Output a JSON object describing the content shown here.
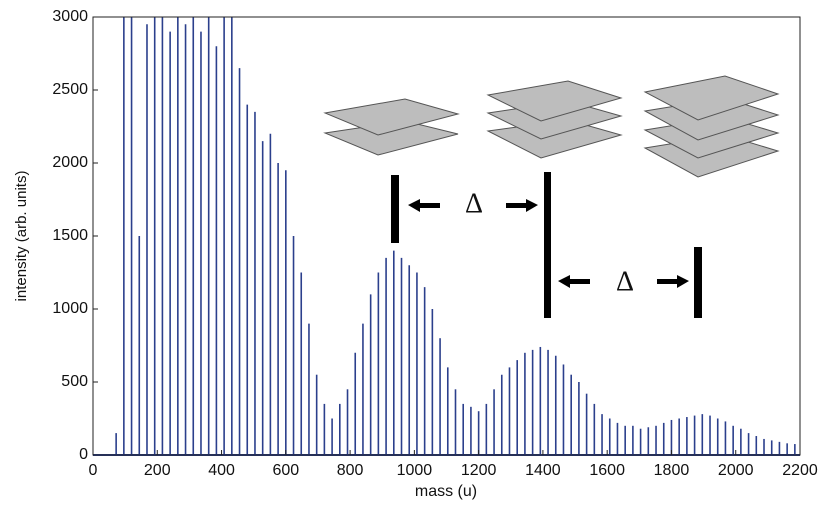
{
  "chart_data": {
    "type": "stick",
    "x_label": "mass (u)",
    "y_label": "intensity (arb. units)",
    "xlim": [
      0,
      2200
    ],
    "xticks": [
      0,
      200,
      400,
      600,
      800,
      1000,
      1200,
      1400,
      1600,
      1800,
      2000,
      2200
    ],
    "ylim": [
      0,
      3000
    ],
    "yticks": [
      0,
      500,
      1000,
      1500,
      2000,
      2500,
      3000
    ],
    "color": "#2b3f8c",
    "x": [
      72,
      96,
      120,
      144,
      168,
      192,
      216,
      240,
      264,
      288,
      312,
      336,
      360,
      384,
      408,
      432,
      456,
      480,
      504,
      528,
      552,
      576,
      600,
      624,
      648,
      672,
      696,
      720,
      744,
      768,
      792,
      816,
      840,
      864,
      888,
      912,
      936,
      960,
      984,
      1008,
      1032,
      1056,
      1080,
      1104,
      1128,
      1152,
      1176,
      1200,
      1224,
      1248,
      1272,
      1296,
      1320,
      1344,
      1368,
      1392,
      1416,
      1440,
      1464,
      1488,
      1512,
      1536,
      1560,
      1584,
      1608,
      1632,
      1656,
      1680,
      1704,
      1728,
      1752,
      1776,
      1800,
      1824,
      1848,
      1872,
      1896,
      1920,
      1944,
      1968,
      1992,
      2016,
      2040,
      2064,
      2088,
      2112,
      2136,
      2160,
      2184
    ],
    "values": [
      150,
      3000,
      3000,
      1500,
      2950,
      3000,
      3000,
      2900,
      3000,
      2950,
      3000,
      2900,
      3000,
      2800,
      3000,
      3000,
      2650,
      2400,
      2350,
      2150,
      2200,
      2000,
      1950,
      1500,
      1250,
      900,
      550,
      350,
      250,
      350,
      450,
      700,
      900,
      1100,
      1250,
      1350,
      1400,
      1350,
      1300,
      1250,
      1150,
      1000,
      800,
      600,
      450,
      350,
      330,
      300,
      350,
      450,
      550,
      600,
      650,
      700,
      720,
      740,
      720,
      680,
      620,
      550,
      500,
      420,
      350,
      280,
      250,
      220,
      200,
      200,
      180,
      190,
      200,
      220,
      240,
      250,
      260,
      270,
      280,
      270,
      250,
      230,
      200,
      180,
      150,
      130,
      110,
      100,
      90,
      80,
      75
    ],
    "annotations": [
      "Δ",
      "Δ"
    ]
  }
}
